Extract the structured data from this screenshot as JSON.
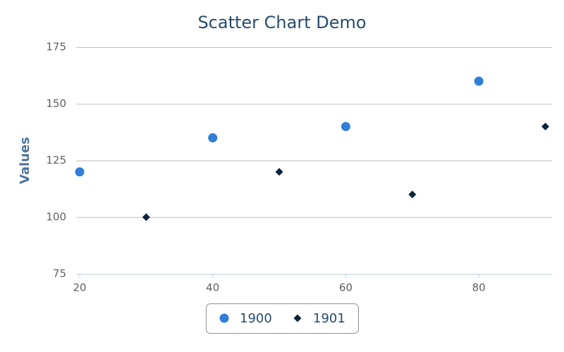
{
  "chart_data": {
    "type": "scatter",
    "title": "Scatter Chart Demo",
    "y_label": "Values",
    "series": [
      {
        "name": "1900",
        "color": "#2f7ed8",
        "marker": "circle",
        "x": [
          20,
          40,
          60,
          80
        ],
        "values": [
          120,
          135,
          140,
          160
        ]
      },
      {
        "name": "1901",
        "color": "#0d233a",
        "marker": "diamond",
        "x": [
          30,
          50,
          70,
          90
        ],
        "values": [
          100,
          120,
          110,
          140
        ]
      }
    ],
    "xlim": [
      20,
      91
    ],
    "xticks": [
      20,
      40,
      60,
      80
    ],
    "ylim": [
      75,
      175
    ],
    "yticks": [
      75,
      100,
      125,
      150,
      175
    ],
    "grid": true,
    "legend": "bottom"
  }
}
